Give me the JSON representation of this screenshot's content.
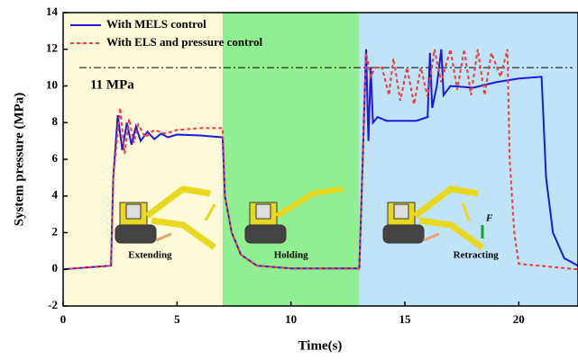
{
  "chart_data": {
    "type": "line",
    "x_label": "Time(s)",
    "y_label": "System pressure (MPa)",
    "xlim": [
      0,
      22.6
    ],
    "ylim": [
      -2,
      14
    ],
    "xticks": [
      0,
      5,
      10,
      15,
      20
    ],
    "yticks": [
      -2,
      0,
      2,
      4,
      6,
      8,
      10,
      12,
      14
    ],
    "legend": "upper left",
    "regions": [
      {
        "start": 0,
        "end": 7,
        "color": "#fffbd8",
        "label": "Extending"
      },
      {
        "start": 7,
        "end": 13,
        "color": "#90ef90",
        "label": "Holding"
      },
      {
        "start": 13,
        "end": 22.6,
        "color": "#bfe3f8",
        "label": "Retracting"
      }
    ],
    "reference": {
      "value": 11,
      "label": "11 MPa"
    },
    "force_label": "F",
    "series": [
      {
        "name": "With MELS control",
        "color": "#1a1adb",
        "dash": "none",
        "x": [
          0,
          1,
          2.1,
          2.2,
          2.4,
          2.6,
          2.8,
          3.0,
          3.2,
          3.4,
          3.7,
          4.0,
          4.3,
          4.6,
          5,
          6,
          7.0,
          7.1,
          7.4,
          7.8,
          8.5,
          10,
          13.0,
          13.1,
          13.3,
          13.4,
          13.5,
          13.6,
          13.8,
          14.2,
          15.5,
          16.0,
          16.1,
          16.2,
          16.4,
          16.6,
          16.7,
          17,
          18,
          19,
          20,
          21.0,
          21.2,
          21.5,
          22,
          22.6
        ],
        "values": [
          0,
          0.1,
          0.2,
          5,
          8.4,
          6.5,
          8,
          6.8,
          7.8,
          7.0,
          7.5,
          7.1,
          7.4,
          7.2,
          7.35,
          7.3,
          7.2,
          4,
          2,
          0.8,
          0.2,
          0.05,
          0.05,
          4,
          12,
          7,
          11,
          8,
          8.3,
          8.1,
          8.1,
          8.3,
          11.8,
          8.8,
          10,
          12,
          9.5,
          10,
          9.9,
          10.2,
          10.4,
          10.5,
          5,
          2,
          0.6,
          0.2
        ]
      },
      {
        "name": "With ELS and pressure control",
        "color": "#f03c3c",
        "dash": "4 3",
        "x": [
          0,
          1,
          2.1,
          2.2,
          2.5,
          2.7,
          2.9,
          3.1,
          3.3,
          3.6,
          4.0,
          4.5,
          5,
          6,
          7.0,
          7.1,
          7.4,
          7.8,
          8.5,
          10,
          13.0,
          13.1,
          13.3,
          13.5,
          13.7,
          14,
          14.3,
          14.5,
          14.8,
          15.1,
          15.4,
          15.7,
          16,
          16.3,
          16.6,
          17,
          17.3,
          17.6,
          17.9,
          18.2,
          18.5,
          18.8,
          19.2,
          19.5,
          19.6,
          19.8,
          20,
          22.6
        ],
        "values": [
          0,
          0.1,
          0.2,
          5,
          8.8,
          6.3,
          8.2,
          6.9,
          7.9,
          7.2,
          7.6,
          7.4,
          7.6,
          7.7,
          7.7,
          4,
          2,
          0.8,
          0.2,
          0.05,
          0.05,
          4,
          11.8,
          10.5,
          11,
          11,
          9.5,
          11.5,
          9.2,
          11,
          9.0,
          11,
          9.4,
          12,
          10.2,
          12,
          9.8,
          12,
          9.5,
          12,
          9.5,
          11.8,
          10.5,
          12,
          6,
          2,
          0.3,
          0
        ]
      }
    ]
  }
}
